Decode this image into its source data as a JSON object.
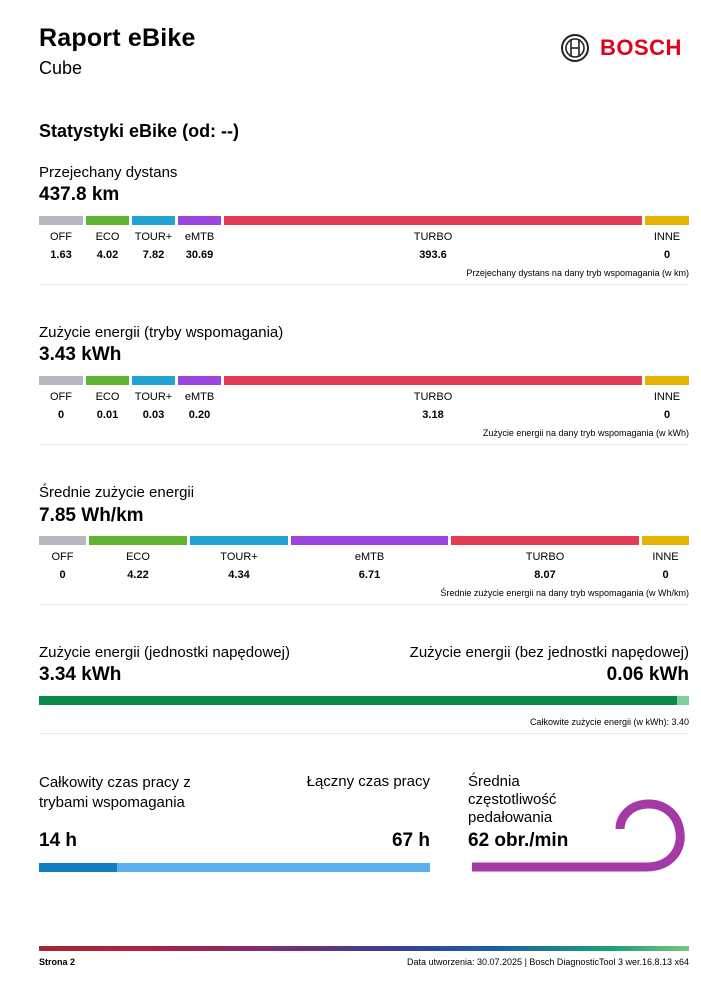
{
  "header": {
    "title": "Raport eBike",
    "subtitle": "Cube",
    "brand": "BOSCH"
  },
  "section_title": "Statystyki eBike (od: --)",
  "colors": {
    "off": "#b4b8be",
    "eco": "#5fb42f",
    "tour": "#22a3d6",
    "emtb": "#9a45e0",
    "turbo": "#e43c52",
    "inne": "#e6b400",
    "green": "#0d8a4a",
    "blue_dark": "#137cc2",
    "blue_light": "#5bb0ef",
    "purple": "#a43aa6"
  },
  "distance": {
    "label": "Przejechany dystans",
    "value": "437.8 km",
    "modes": [
      {
        "name": "OFF",
        "value": "1.63"
      },
      {
        "name": "ECO",
        "value": "4.02"
      },
      {
        "name": "TOUR+",
        "value": "7.82"
      },
      {
        "name": "eMTB",
        "value": "30.69"
      },
      {
        "name": "TURBO",
        "value": "393.6"
      },
      {
        "name": "INNE",
        "value": "0"
      }
    ],
    "note": "Przejechany dystans na dany tryb wspomagania (w km)"
  },
  "energy_modes": {
    "label": "Zużycie energii (tryby wspomagania)",
    "value": "3.43 kWh",
    "modes": [
      {
        "name": "OFF",
        "value": "0"
      },
      {
        "name": "ECO",
        "value": "0.01"
      },
      {
        "name": "TOUR+",
        "value": "0.03"
      },
      {
        "name": "eMTB",
        "value": "0.20"
      },
      {
        "name": "TURBO",
        "value": "3.18"
      },
      {
        "name": "INNE",
        "value": "0"
      }
    ],
    "note": "Zużycie energii na dany tryb wspomagania (w kWh)"
  },
  "avg_energy": {
    "label": "Średnie zużycie energii",
    "value": "7.85 Wh/km",
    "modes": [
      {
        "name": "OFF",
        "value": "0"
      },
      {
        "name": "ECO",
        "value": "4.22"
      },
      {
        "name": "TOUR+",
        "value": "4.34"
      },
      {
        "name": "eMTB",
        "value": "6.71"
      },
      {
        "name": "TURBO",
        "value": "8.07"
      },
      {
        "name": "INNE",
        "value": "0"
      }
    ],
    "note": "Średnie zużycie energii na dany tryb wspomagania (w Wh/km)"
  },
  "drive_energy": {
    "with_label": "Zużycie energii (jednostki napędowej)",
    "with_value": "3.34 kWh",
    "without_label": "Zużycie energii (bez jednostki napędowej)",
    "without_value": "0.06 kWh",
    "share_with": 0.982,
    "note": "Całkowite zużycie energii (w  kWh): 3.40"
  },
  "time": {
    "assist_label": "Całkowity czas pracy z trybami wspomagania",
    "assist_value": "14 h",
    "total_label": "Łączny czas pracy",
    "total_value": "67 h",
    "assist_share": 0.2
  },
  "cadence": {
    "label": "Średnia częstotliwość pedałowania",
    "value": "62 obr./min"
  },
  "footer": {
    "page": "Strona 2",
    "info": "Data utworzenia: 30.07.2025 | Bosch DiagnosticTool 3 wer.16.8.13 x64"
  }
}
